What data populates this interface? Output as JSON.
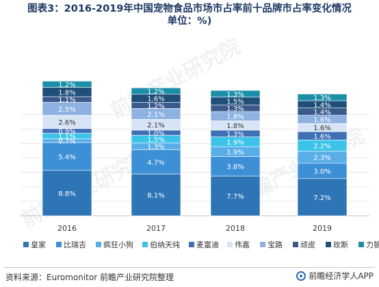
{
  "title": {
    "line1": "图表3：2016-2019年中国宠物食品市场市占率前十品牌市占率变化情况",
    "line2": "单位：%)"
  },
  "source": "资料来源：Euromonitor 前瞻产业研究院整理",
  "brand": "前瞻经济学人APP",
  "watermark": "前瞻产业研究院",
  "chart_data": {
    "type": "bar",
    "stacked": true,
    "categories": [
      "2016",
      "2017",
      "2018",
      "2019"
    ],
    "series": [
      {
        "name": "皇家",
        "color": "#2e75b6",
        "values": [
          8.8,
          8.1,
          7.7,
          7.2
        ]
      },
      {
        "name": "比瑞吉",
        "color": "#3d8fd6",
        "values": [
          5.4,
          4.7,
          3.8,
          3.0
        ]
      },
      {
        "name": "疯狂小狗",
        "color": "#5aaee8",
        "values": [
          0.7,
          1.3,
          1.9,
          2.3
        ]
      },
      {
        "name": "伯纳天纯",
        "color": "#3cc3ea",
        "values": [
          1.1,
          1.5,
          1.9,
          2.2
        ]
      },
      {
        "name": "麦富迪",
        "color": "#3f6fb5",
        "values": [
          0.9,
          1.0,
          1.3,
          1.6
        ]
      },
      {
        "name": "伟嘉",
        "color": "#d7e4f5",
        "values": [
          2.6,
          2.1,
          1.8,
          1.6
        ]
      },
      {
        "name": "宝路",
        "color": "#8db2e2",
        "values": [
          2.5,
          2.1,
          1.8,
          1.6
        ]
      },
      {
        "name": "顽皮",
        "color": "#3b5a8c",
        "values": [
          1.1,
          1.2,
          1.3,
          1.4
        ]
      },
      {
        "name": "玫斯",
        "color": "#1f4e79",
        "values": [
          1.8,
          1.6,
          1.5,
          1.4
        ]
      },
      {
        "name": "力狼",
        "color": "#1b8fa8",
        "values": [
          1.2,
          1.2,
          1.3,
          1.3
        ]
      }
    ],
    "grid": true,
    "legend": "bottom"
  }
}
